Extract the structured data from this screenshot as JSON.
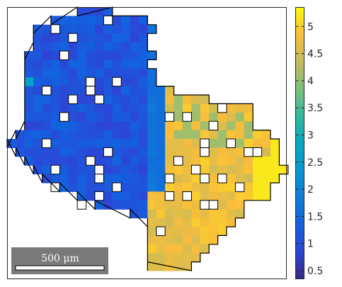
{
  "chart_data": {
    "type": "heatmap",
    "title": "",
    "xlabel": "",
    "ylabel": "",
    "colorbar": {
      "colormap": "parula",
      "range": [
        0.35,
        5.35
      ],
      "ticks": [
        0.5,
        1,
        1.5,
        2,
        2.5,
        3,
        3.5,
        4,
        4.5,
        5
      ],
      "tick_labels": [
        "0.5",
        "1",
        "1.5",
        "2",
        "2.5",
        "3",
        "3.5",
        "4",
        "4.5",
        "5"
      ],
      "placement": "right"
    },
    "grains": [
      {
        "name": "blue grain",
        "value_range": [
          0.6,
          1.8
        ]
      },
      {
        "name": "yellow grain",
        "value_range": [
          4.3,
          5.3
        ]
      }
    ],
    "scale_bar": {
      "label": "500 μm",
      "length_um": 500
    },
    "grid": false
  },
  "colors": {
    "background": "#ffffff",
    "frame": "#262626",
    "scalebar_bg": "#7a7a7a",
    "grain_border": "#000000"
  }
}
